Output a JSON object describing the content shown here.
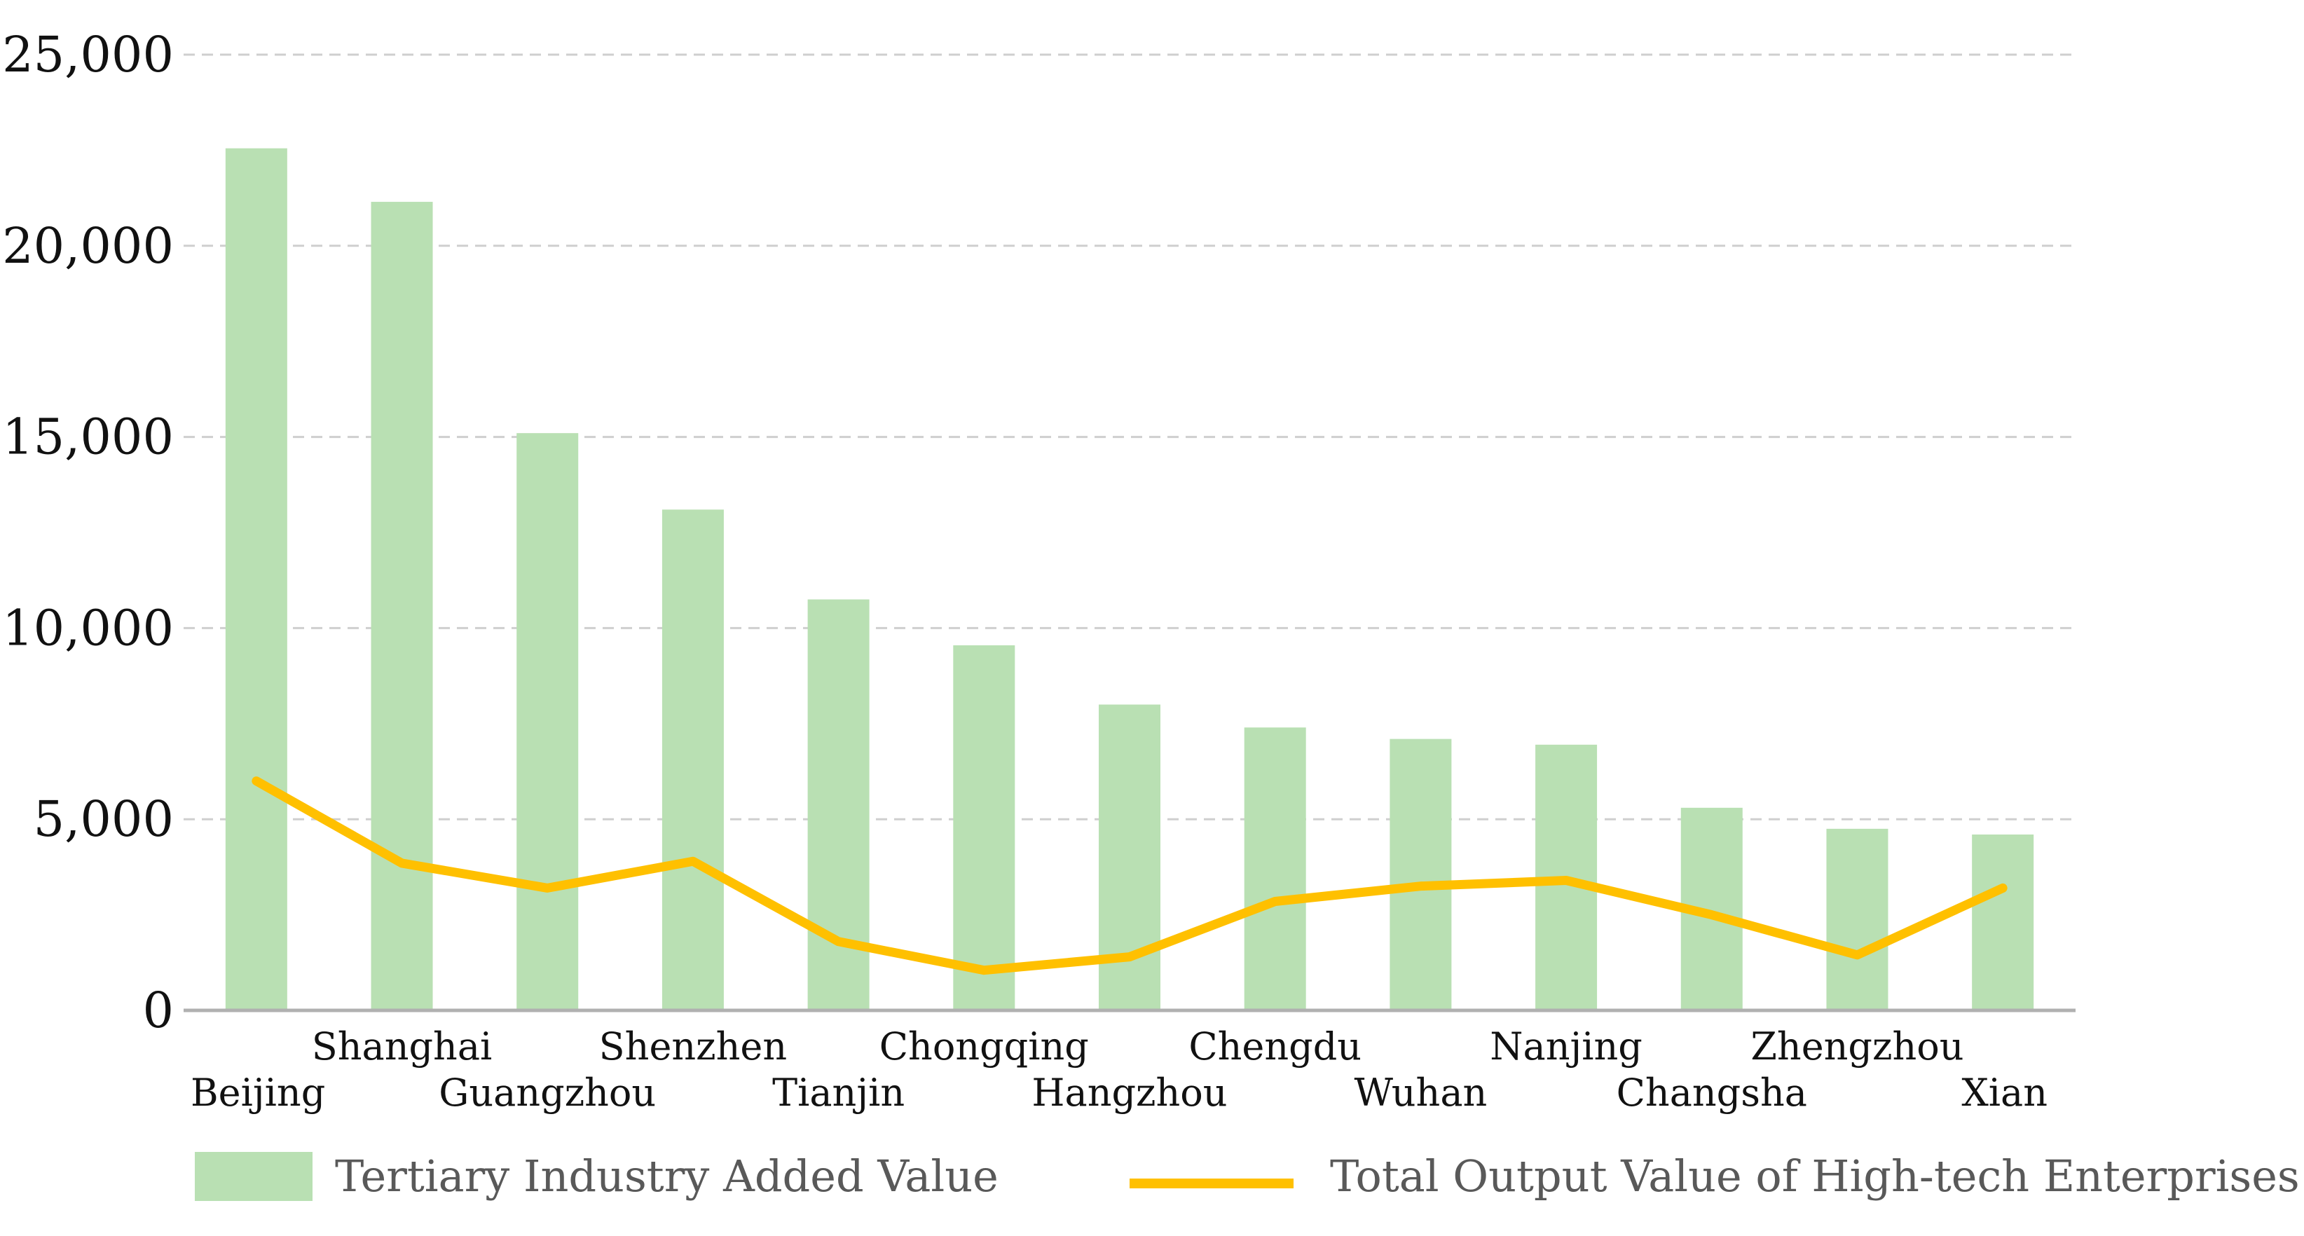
{
  "chart_data": {
    "type": "bar+line",
    "title": "",
    "xlabel": "",
    "ylabel": "",
    "ylim": [
      0,
      25000
    ],
    "yticks": [
      0,
      5000,
      10000,
      15000,
      20000,
      25000
    ],
    "ytick_labels": [
      "0",
      "5,000",
      "10,000",
      "15,000",
      "20,000",
      "25,000"
    ],
    "grid": "horizontal dashed",
    "categories": [
      "Beijing",
      "Shanghai",
      "Guangzhou",
      "Shenzhen",
      "Tianjin",
      "Chongqing",
      "Hangzhou",
      "Chengdu",
      "Wuhan",
      "Nanjing",
      "Changsha",
      "Zhengzhou",
      "Xian"
    ],
    "series": [
      {
        "name": "Tertiary Industry Added Value",
        "kind": "bar",
        "color": "#b9e0b3",
        "values": [
          22550,
          21150,
          15100,
          13100,
          10750,
          9550,
          8000,
          7400,
          7100,
          6950,
          5300,
          4750,
          4600
        ]
      },
      {
        "name": "Total Output Value of High-tech Enterprises",
        "kind": "line",
        "color": "#ffc000",
        "values": [
          6000,
          3850,
          3200,
          3900,
          1800,
          1050,
          1400,
          2850,
          3250,
          3400,
          2500,
          1450,
          3200
        ]
      }
    ],
    "legend_position": "bottom"
  }
}
